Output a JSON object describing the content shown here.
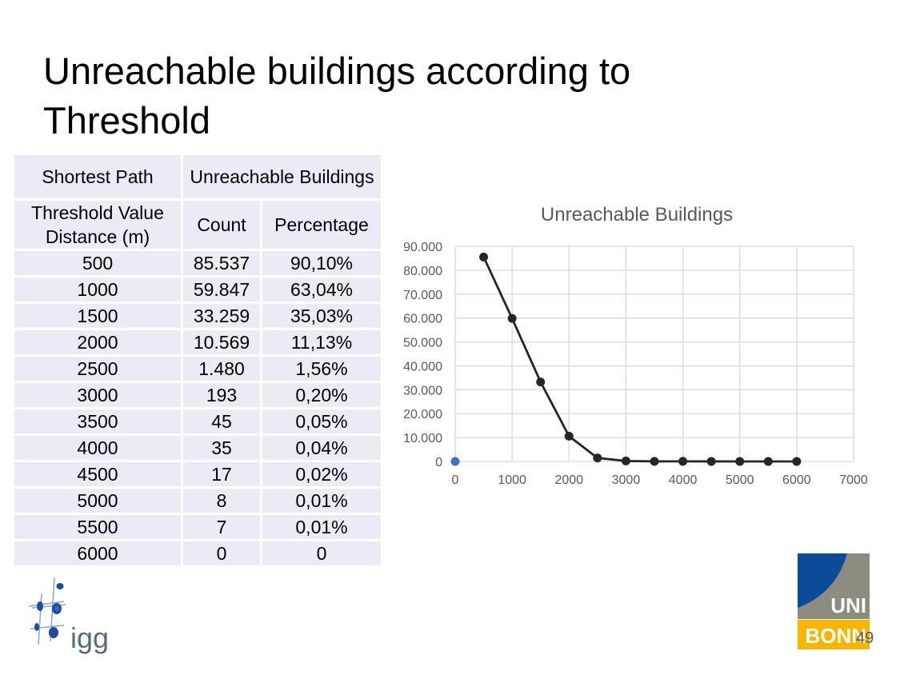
{
  "slide": {
    "title": "Unreachable buildings according to Threshold",
    "page_number": "49"
  },
  "table": {
    "header_row1": {
      "left": "Shortest Path",
      "right": "Unreachable Buildings"
    },
    "header_row2": {
      "left": "Threshold Value Distance (m)",
      "count": "Count",
      "percentage": "Percentage"
    },
    "rows": [
      {
        "threshold": "500",
        "count": "85.537",
        "percentage": "90,10%"
      },
      {
        "threshold": "1000",
        "count": "59.847",
        "percentage": "63,04%"
      },
      {
        "threshold": "1500",
        "count": "33.259",
        "percentage": "35,03%"
      },
      {
        "threshold": "2000",
        "count": "10.569",
        "percentage": "11,13%"
      },
      {
        "threshold": "2500",
        "count": "1.480",
        "percentage": "1,56%"
      },
      {
        "threshold": "3000",
        "count": "193",
        "percentage": "0,20%"
      },
      {
        "threshold": "3500",
        "count": "45",
        "percentage": "0,05%"
      },
      {
        "threshold": "4000",
        "count": "35",
        "percentage": "0,04%"
      },
      {
        "threshold": "4500",
        "count": "17",
        "percentage": "0,02%"
      },
      {
        "threshold": "5000",
        "count": "8",
        "percentage": "0,01%"
      },
      {
        "threshold": "5500",
        "count": "7",
        "percentage": "0,01%"
      },
      {
        "threshold": "6000",
        "count": "0",
        "percentage": "0"
      }
    ]
  },
  "chart_data": {
    "type": "scatter",
    "title": "Unreachable Buildings",
    "xlabel": "",
    "ylabel": "",
    "xlim": [
      0,
      7000
    ],
    "ylim": [
      0,
      90000
    ],
    "x_ticks": [
      0,
      1000,
      2000,
      3000,
      4000,
      5000,
      6000,
      7000
    ],
    "x_tick_labels": [
      "0",
      "1000",
      "2000",
      "3000",
      "4000",
      "5000",
      "6000",
      "7000"
    ],
    "y_ticks": [
      0,
      10000,
      20000,
      30000,
      40000,
      50000,
      60000,
      70000,
      80000,
      90000
    ],
    "y_tick_labels": [
      "0",
      "10.000",
      "20.000",
      "30.000",
      "40.000",
      "50.000",
      "60.000",
      "70.000",
      "80.000",
      "90.000"
    ],
    "grid": true,
    "legend": "none",
    "series": [
      {
        "color": "#262626",
        "line": true,
        "points": [
          [
            500,
            85537
          ],
          [
            1000,
            59847
          ],
          [
            1500,
            33259
          ],
          [
            2000,
            10569
          ],
          [
            2500,
            1480
          ],
          [
            3000,
            193
          ],
          [
            3500,
            45
          ],
          [
            4000,
            35
          ],
          [
            4500,
            17
          ],
          [
            5000,
            8
          ],
          [
            5500,
            7
          ],
          [
            6000,
            0
          ]
        ]
      },
      {
        "color": "#4472C4",
        "line": false,
        "points": [
          [
            0,
            0
          ]
        ]
      }
    ]
  },
  "logos": {
    "igg_text": "igg",
    "bonn_line1": "UNI",
    "bonn_line2": "BONN",
    "bonn_colors": {
      "blue": "#0A4C9A",
      "grey": "#8C8C80",
      "yellow": "#F7B500"
    }
  }
}
